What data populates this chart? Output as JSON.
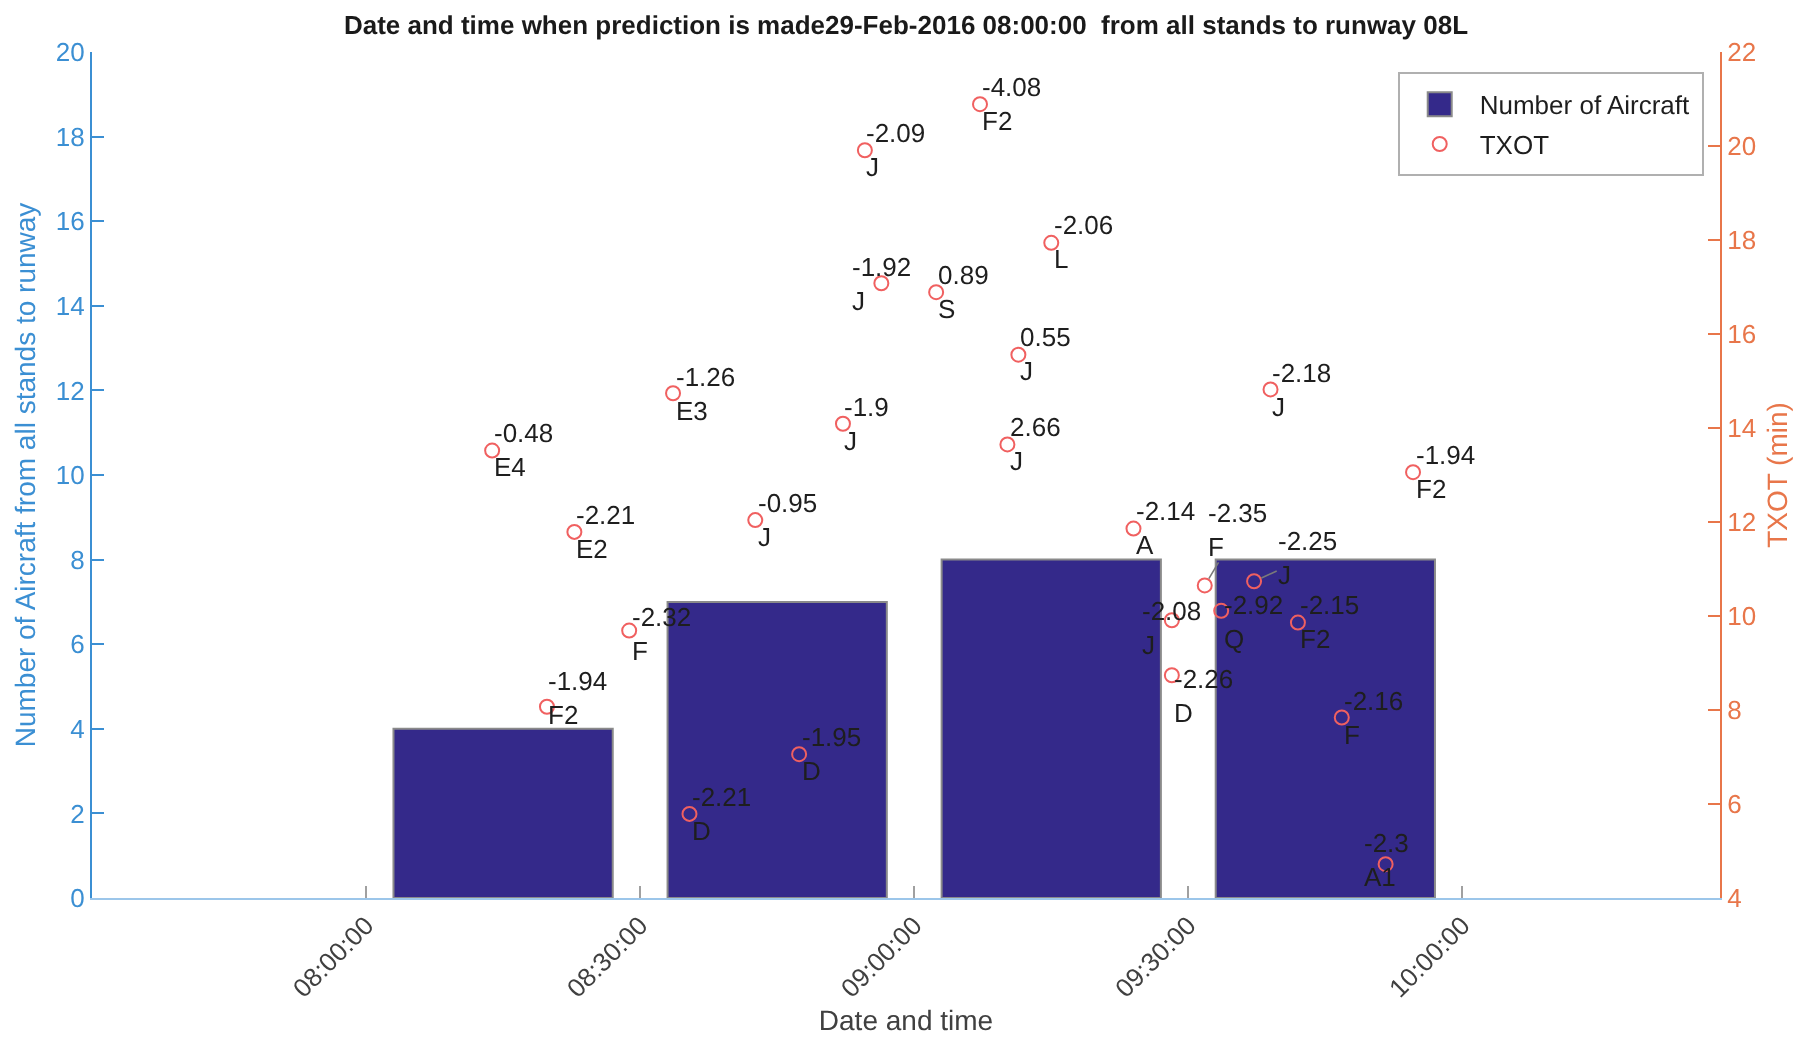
{
  "chart_data": {
    "type": "bar",
    "title": "Date and time when prediction is made29-Feb-2016 08:00:00  from all stands to runway 08L",
    "xlabel": "Date and time",
    "ylabel": "Number of Aircraft from all stands to runway",
    "y2label": "TXOT (min)",
    "x": [
      8.25,
      8.75,
      9.25,
      9.75
    ],
    "series": [
      {
        "name": "Number of Aircraft",
        "color": "#34298a",
        "values": [
          4,
          7,
          8,
          8
        ]
      },
      {
        "name": "TXOT",
        "type": "scatter",
        "axis": "y2",
        "color": "#f06060",
        "x": [
          8.23,
          8.33,
          8.38,
          8.48,
          8.56,
          8.59,
          8.71,
          8.79,
          8.87,
          8.91,
          8.94,
          9.04,
          9.12,
          9.17,
          9.19,
          9.25,
          9.4,
          9.47,
          9.47,
          9.53,
          9.56,
          9.62,
          9.65,
          9.7,
          9.78,
          9.86,
          9.91
        ],
        "values": [
          13.52,
          8.07,
          11.79,
          9.69,
          14.74,
          5.79,
          12.04,
          7.06,
          14.09,
          19.91,
          17.08,
          16.89,
          20.89,
          13.65,
          15.56,
          17.94,
          11.86,
          9.91,
          8.74,
          10.65,
          10.11,
          10.74,
          14.82,
          9.86,
          7.84,
          4.72,
          13.06
        ]
      }
    ],
    "xlim": [
      7.5,
      10.47
    ],
    "xticks": [
      {
        "value": 8,
        "label": "08:00:00"
      },
      {
        "value": 8.5,
        "label": "08:30:00"
      },
      {
        "value": 9,
        "label": "09:00:00"
      },
      {
        "value": 9.5,
        "label": "09:30:00"
      },
      {
        "value": 10,
        "label": "10:00:00"
      }
    ],
    "ylim": [
      0,
      20
    ],
    "yticks": [
      0,
      2,
      4,
      6,
      8,
      10,
      12,
      14,
      16,
      18,
      20
    ],
    "y2lim": [
      4,
      22
    ],
    "y2ticks": [
      4,
      6,
      8,
      10,
      12,
      14,
      16,
      18,
      20,
      22
    ],
    "legend": "top right",
    "marker": "circle",
    "annotations": [
      {
        "text": "-0.48\nE4",
        "x": 8.23,
        "y": 10.58
      },
      {
        "text": "-1.94\nF2",
        "x": 8.33,
        "y": 4.52
      },
      {
        "text": "-2.21\nE2",
        "x": 8.38,
        "y": 8.66
      },
      {
        "text": "-2.32\nF",
        "x": 8.48,
        "y": 6.32
      },
      {
        "text": "-1.26\nE3",
        "x": 8.56,
        "y": 11.93
      },
      {
        "text": "-2.21\nD",
        "x": 8.59,
        "y": 1.99
      },
      {
        "text": "-0.95\nJ",
        "x": 8.71,
        "y": 8.93
      },
      {
        "text": "-1.95\nD",
        "x": 8.79,
        "y": 3.4
      },
      {
        "text": "-1.9\nJ",
        "x": 8.87,
        "y": 11.21
      },
      {
        "text": "-2.09\nJ",
        "x": 8.91,
        "y": 17.68
      },
      {
        "text": "-1.92\nJ",
        "x": 8.94,
        "y": 14.53
      },
      {
        "text": "0.89\nS",
        "x": 9.04,
        "y": 14.32
      },
      {
        "text": "-4.08\nF2",
        "x": 9.12,
        "y": 18.77
      },
      {
        "text": "2.66\nJ",
        "x": 9.17,
        "y": 10.72
      },
      {
        "text": "0.55\nJ",
        "x": 9.19,
        "y": 12.84
      },
      {
        "text": "-2.06\nL",
        "x": 9.25,
        "y": 15.49
      },
      {
        "text": "-2.14\nA",
        "x": 9.4,
        "y": 8.73
      },
      {
        "text": "-2.08\nJ",
        "x": 9.47,
        "y": 6.57
      },
      {
        "text": "-2.26\nD",
        "x": 9.47,
        "y": 5.27
      },
      {
        "text": "-2.35\nF",
        "x": 9.53,
        "y": 7.39
      },
      {
        "text": "-2.92\nQ",
        "x": 9.56,
        "y": 6.79
      },
      {
        "text": "-2.25\nJ",
        "x": 9.62,
        "y": 7.49
      },
      {
        "text": "-2.18\nJ",
        "x": 9.65,
        "y": 12.02
      },
      {
        "text": "-2.15\nF2",
        "x": 9.7,
        "y": 6.51
      },
      {
        "text": "-2.16\nF",
        "x": 9.78,
        "y": 4.27
      },
      {
        "text": "-2.3\nA1",
        "x": 9.86,
        "y": 0.8
      },
      {
        "text": "-1.94\nF2",
        "x": 9.91,
        "y": 10.07
      }
    ]
  }
}
